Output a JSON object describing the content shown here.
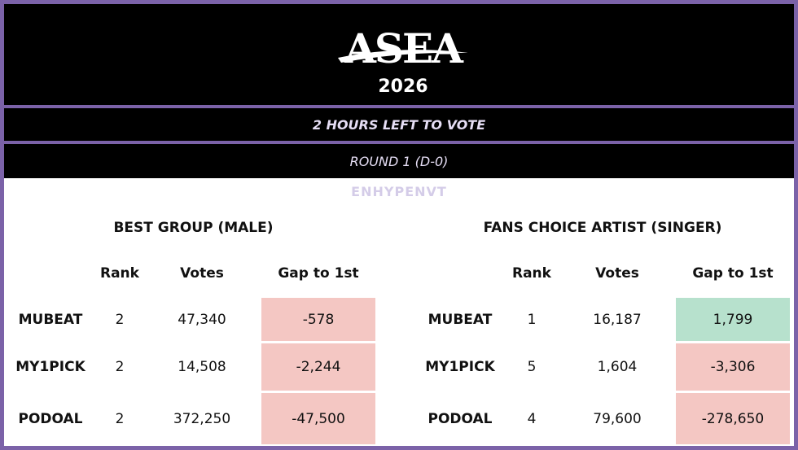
{
  "header": {
    "logo": "ASEA",
    "year": "2026"
  },
  "banner": "2 HOURS LEFT TO VOTE",
  "round": "ROUND 1 (D-0)",
  "watermark": "ENHYPENVT",
  "tables": [
    {
      "title": "BEST GROUP (MALE)",
      "columns": [
        "Rank",
        "Votes",
        "Gap to 1st"
      ],
      "rows": [
        {
          "label": "MUBEAT",
          "rank": "2",
          "votes": "47,340",
          "gap": "-578",
          "color": "#f4c7c3"
        },
        {
          "label": "MY1PICK",
          "rank": "2",
          "votes": "14,508",
          "gap": "-2,244",
          "color": "#f4c7c3"
        },
        {
          "label": "PODOAL",
          "rank": "2",
          "votes": "372,250",
          "gap": "-47,500",
          "color": "#f4c7c3"
        }
      ]
    },
    {
      "title": "FANS CHOICE ARTIST (SINGER)",
      "columns": [
        "Rank",
        "Votes",
        "Gap to 1st"
      ],
      "rows": [
        {
          "label": "MUBEAT",
          "rank": "1",
          "votes": "16,187",
          "gap": "1,799",
          "color": "#b7e1cd"
        },
        {
          "label": "MY1PICK",
          "rank": "5",
          "votes": "1,604",
          "gap": "-3,306",
          "color": "#f4c7c3"
        },
        {
          "label": "PODOAL",
          "rank": "4",
          "votes": "79,600",
          "gap": "-278,650",
          "color": "#f4c7c3"
        }
      ]
    }
  ]
}
